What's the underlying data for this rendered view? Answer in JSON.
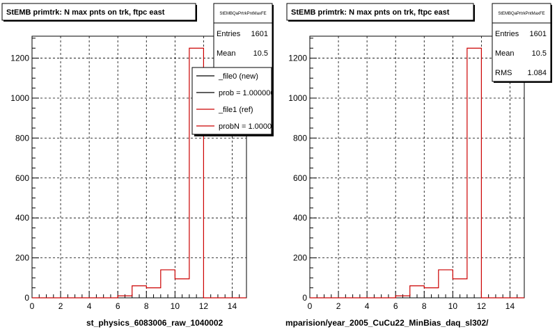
{
  "chart_data": [
    {
      "type": "histogram",
      "title": "StEMB primtrk: N max pnts on trk, ftpc east",
      "stats_name": "StEMBQaPrtrkPntMaxFE",
      "stats": [
        {
          "label": "Entries",
          "value": "1601"
        },
        {
          "label": "Mean",
          "value": "10.5"
        }
      ],
      "legend": [
        {
          "label": "_file0 (new)",
          "color": "#000000"
        },
        {
          "label": "prob = 1.000000",
          "color": "#000000"
        },
        {
          "label": "_file1 (ref)",
          "color": "#cc0000"
        },
        {
          "label": "probN = 1.000000",
          "color": "#cc0000"
        }
      ],
      "xlabel": "st_physics_6083006_raw_1040002",
      "xlim": [
        0,
        15
      ],
      "ylim": [
        0,
        1310
      ],
      "xticks": [
        0,
        2,
        4,
        6,
        8,
        10,
        12,
        14
      ],
      "yticks": [
        0,
        200,
        400,
        600,
        800,
        1000,
        1200
      ],
      "bin_edges": [
        0,
        1,
        2,
        3,
        4,
        5,
        6,
        7,
        8,
        9,
        10,
        11,
        12,
        13,
        14,
        15
      ],
      "series": [
        {
          "color": "#cc0000",
          "values": [
            0,
            0,
            0,
            0,
            0,
            0,
            10,
            60,
            50,
            140,
            95,
            1250,
            0,
            0,
            0
          ]
        }
      ]
    },
    {
      "type": "histogram",
      "title": "StEMB primtrk: N max pnts on trk, ftpc east",
      "stats_name": "StEMBQaPrtrkPntMaxFE",
      "stats": [
        {
          "label": "Entries",
          "value": "1601"
        },
        {
          "label": "Mean",
          "value": "10.5"
        },
        {
          "label": "RMS",
          "value": "1.084"
        }
      ],
      "legend": [],
      "xlabel": "mparision/year_2005_CuCu22_MinBias_daq_sl302/",
      "xlim": [
        0,
        15
      ],
      "ylim": [
        0,
        1310
      ],
      "xticks": [
        0,
        2,
        4,
        6,
        8,
        10,
        12,
        14
      ],
      "yticks": [
        0,
        200,
        400,
        600,
        800,
        1000,
        1200
      ],
      "bin_edges": [
        0,
        1,
        2,
        3,
        4,
        5,
        6,
        7,
        8,
        9,
        10,
        11,
        12,
        13,
        14,
        15
      ],
      "series": [
        {
          "color": "#cc0000",
          "values": [
            0,
            0,
            0,
            0,
            0,
            0,
            10,
            60,
            50,
            140,
            95,
            1250,
            0,
            0,
            0
          ]
        }
      ]
    }
  ]
}
